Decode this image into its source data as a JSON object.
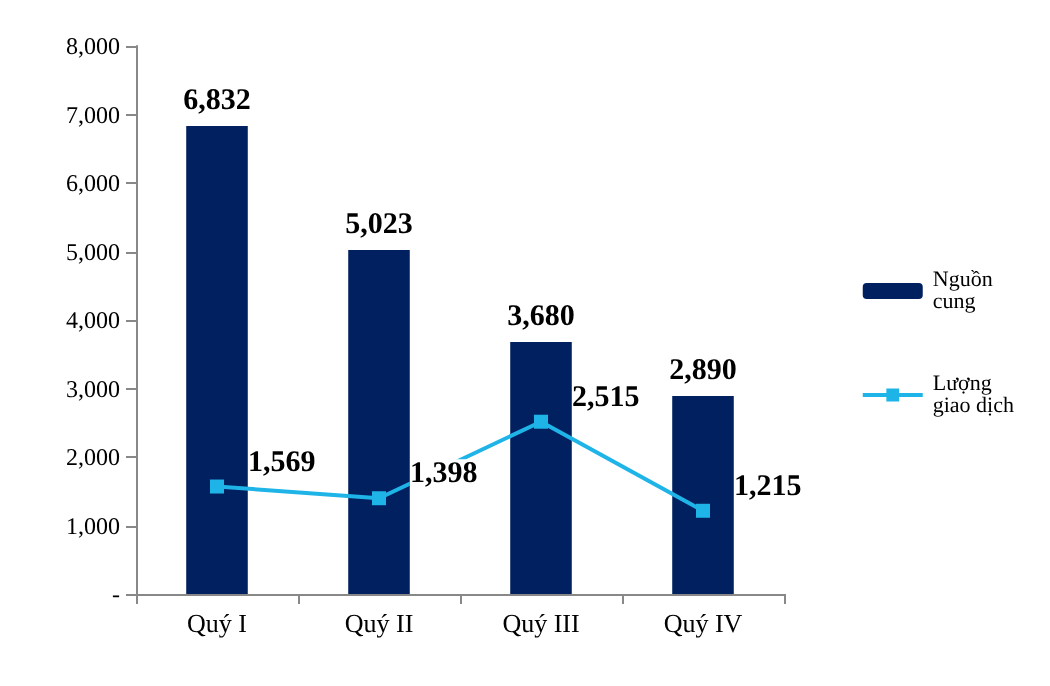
{
  "chart_data": {
    "type": "bar",
    "categories": [
      "Quý I",
      "Quý II",
      "Quý III",
      "Quý IV"
    ],
    "series": [
      {
        "name": "Nguồn cung",
        "color": "#002060",
        "values": [
          6832,
          5023,
          3680,
          2890
        ],
        "value_labels": [
          "6,832",
          "5,023",
          "3,680",
          "2,890"
        ]
      },
      {
        "name": "Lượng giao dịch",
        "type": "line",
        "color": "#1fb4e8",
        "marker": "square",
        "values": [
          1569,
          1398,
          2515,
          1215
        ],
        "value_labels": [
          "1,569",
          "1,398",
          "2,515",
          "1,215"
        ]
      }
    ],
    "ylim": [
      0,
      8000
    ],
    "yticks": [
      {
        "value": 0,
        "label": "-"
      },
      {
        "value": 1000,
        "label": "1,000"
      },
      {
        "value": 2000,
        "label": "2,000"
      },
      {
        "value": 3000,
        "label": "3,000"
      },
      {
        "value": 4000,
        "label": "4,000"
      },
      {
        "value": 5000,
        "label": "5,000"
      },
      {
        "value": 6000,
        "label": "6,000"
      },
      {
        "value": 7000,
        "label": "7,000"
      },
      {
        "value": 8000,
        "label": "8,000"
      }
    ],
    "grid": false,
    "legend": "right"
  }
}
